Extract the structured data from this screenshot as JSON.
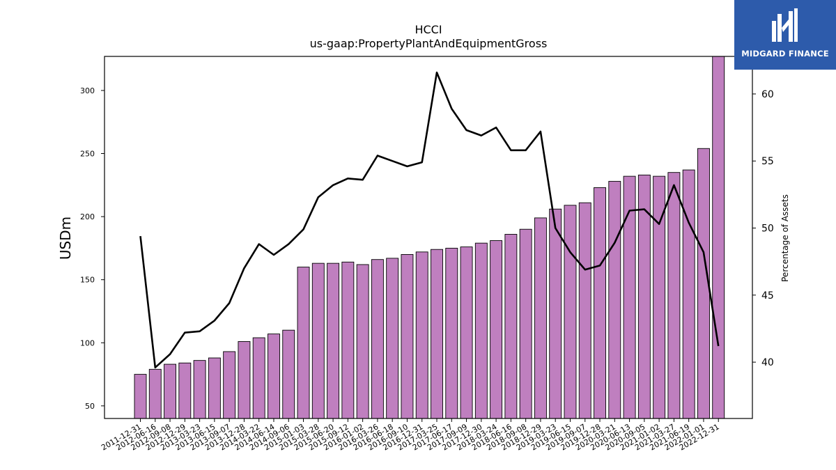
{
  "logo": {
    "text": "MIDGARD FINANCE",
    "icon": "midgard-logo-icon",
    "background": "#2d5bab"
  },
  "chart_data": {
    "type": "bar",
    "title": "HCCI",
    "subtitle": "us-gaap:PropertyPlantAndEquipmentGross",
    "ylabel": "USDm",
    "y2label": "Percentage of Assets",
    "ylim": [
      40,
      327
    ],
    "y2lim": [
      35.8,
      62.8
    ],
    "yticks": [
      50,
      100,
      150,
      200,
      250,
      300
    ],
    "y2ticks": [
      40,
      45,
      50,
      55,
      60
    ],
    "grid": false,
    "bar_color": "#bf7fbf",
    "line_color": "#000000",
    "categories": [
      "2011-12-31",
      "2012-06-16",
      "2012-09-08",
      "2012-12-29",
      "2013-03-23",
      "2013-06-15",
      "2013-09-07",
      "2013-12-28",
      "2014-03-22",
      "2014-06-14",
      "2014-09-06",
      "2015-01-03",
      "2015-03-28",
      "2015-06-20",
      "2015-09-12",
      "2016-01-02",
      "2016-03-26",
      "2016-06-18",
      "2016-09-10",
      "2016-12-31",
      "2017-03-25",
      "2017-06-17",
      "2017-09-09",
      "2017-12-30",
      "2018-03-24",
      "2018-06-16",
      "2018-09-08",
      "2018-12-29",
      "2019-03-23",
      "2019-06-15",
      "2019-09-07",
      "2019-12-28",
      "2020-03-21",
      "2020-06-13",
      "2020-09-05",
      "2021-01-02",
      "2021-03-27",
      "2021-06-19",
      "2022-01-01",
      "2022-12-31"
    ],
    "series": [
      {
        "values": [
          75,
          79,
          83,
          84,
          86,
          88,
          93,
          101,
          104,
          107,
          110,
          160,
          163,
          163,
          164,
          162,
          166,
          167,
          170,
          172,
          174,
          175,
          176,
          179,
          181,
          186,
          190,
          199,
          206,
          209,
          211,
          223,
          228,
          232,
          233,
          232,
          235,
          237,
          254,
          327
        ]
      },
      {
        "axis": "right",
        "values": [
          49.4,
          39.6,
          40.6,
          42.2,
          42.3,
          43.1,
          44.4,
          47.0,
          48.8,
          48.0,
          48.8,
          49.9,
          52.3,
          53.2,
          53.7,
          53.6,
          55.4,
          55.0,
          54.6,
          54.9,
          61.6,
          58.9,
          57.3,
          56.9,
          57.5,
          55.8,
          55.8,
          57.2,
          50.0,
          48.2,
          46.9,
          47.2,
          48.9,
          51.3,
          51.4,
          50.3,
          53.2,
          50.4,
          48.2,
          41.2
        ]
      }
    ]
  }
}
